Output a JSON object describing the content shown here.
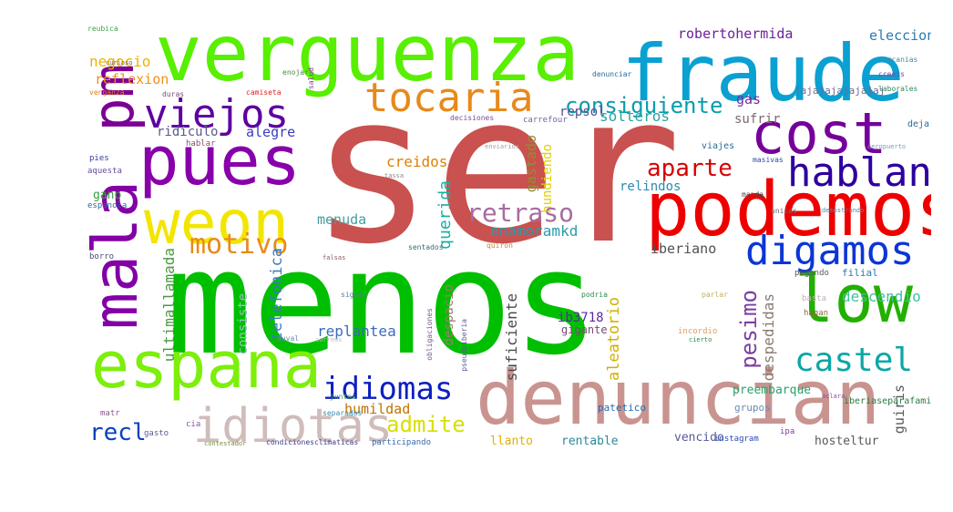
{
  "words": [
    {
      "text": "ser",
      "color": "#c9514f"
    },
    {
      "text": "menos",
      "color": "#00bf00"
    },
    {
      "text": "verguenza",
      "color": "#58ef00"
    },
    {
      "text": "fraude",
      "color": "#0aa0d2"
    },
    {
      "text": "podemos",
      "color": "#ee0000"
    },
    {
      "text": "denuncian",
      "color": "#c99490"
    },
    {
      "text": "pues",
      "color": "#8800aa"
    },
    {
      "text": "weon",
      "color": "#f2e500"
    },
    {
      "text": "pm",
      "color": "#7c0096"
    },
    {
      "text": "mala",
      "color": "#8300a6"
    },
    {
      "text": "espana",
      "color": "#7cef0a"
    },
    {
      "text": "cost",
      "color": "#76009a"
    },
    {
      "text": "low",
      "color": "#22b000"
    },
    {
      "text": "digamos",
      "color": "#0b36d6"
    },
    {
      "text": "hablan",
      "color": "#2d009e"
    },
    {
      "text": "tocaria",
      "color": "#e8891a"
    },
    {
      "text": "viejos",
      "color": "#5e00a0"
    },
    {
      "text": "idiotas",
      "color": "#cfbcbb"
    },
    {
      "text": "idiomas",
      "color": "#0c1fc0"
    },
    {
      "text": "castel",
      "color": "#0aa7a6"
    },
    {
      "text": "motivo",
      "color": "#e88a1a"
    },
    {
      "text": "retraso",
      "color": "#a86ca0"
    },
    {
      "text": "consiguiente",
      "color": "#0a9cac"
    },
    {
      "text": "aparte",
      "color": "#d80000"
    },
    {
      "text": "recl",
      "color": "#0a40c0"
    },
    {
      "text": "admite",
      "color": "#d8e000"
    },
    {
      "text": "robertohermida",
      "color": "#6c2196"
    },
    {
      "text": "eleccion",
      "color": "#2b7ab0"
    },
    {
      "text": "negocio",
      "color": "#f0b000"
    },
    {
      "text": "reflexion",
      "color": "#f0901a"
    },
    {
      "text": "repsol",
      "color": "#505090"
    },
    {
      "text": "solteros",
      "color": "#2aa3a0"
    },
    {
      "text": "creidos",
      "color": "#e08000"
    },
    {
      "text": "querida",
      "color": "#1ab0a0"
    },
    {
      "text": "enamoramkd",
      "color": "#2a9ab0"
    },
    {
      "text": "menuda",
      "color": "#40a0a0"
    },
    {
      "text": "alegre",
      "color": "#3a3ac0"
    },
    {
      "text": "ridiculo",
      "color": "#5a5a90"
    },
    {
      "text": "gastado",
      "color": "#909030"
    },
    {
      "text": "hundiendo",
      "color": "#e0d000"
    },
    {
      "text": "relindos",
      "color": "#2a8ab0"
    },
    {
      "text": "sufrir",
      "color": "#7a6a70"
    },
    {
      "text": "gas",
      "color": "#7a2aa0"
    },
    {
      "text": "jajajajajajajaj",
      "color": "#6a6a90"
    },
    {
      "text": "iberiano",
      "color": "#505050"
    },
    {
      "text": "pesimo",
      "color": "#7a40a0"
    },
    {
      "text": "despedidas",
      "color": "#8a7a70"
    },
    {
      "text": "descendio",
      "color": "#40c0a0"
    },
    {
      "text": "humildad",
      "color": "#c07000"
    },
    {
      "text": "ultimallamada",
      "color": "#4a9a40"
    },
    {
      "text": "telefonica",
      "color": "#3a7ac0"
    },
    {
      "text": "consiste",
      "color": "#90c0c0"
    },
    {
      "text": "replantea",
      "color": "#3a6ac0"
    },
    {
      "text": "despacio",
      "color": "#a07a70"
    },
    {
      "text": "aleatorio",
      "color": "#d0b000"
    },
    {
      "text": "suficiente",
      "color": "#4a4a4a"
    },
    {
      "text": "ib3718",
      "color": "#5a2aa0"
    },
    {
      "text": "gigante",
      "color": "#7a4a70"
    },
    {
      "text": "preembarque",
      "color": "#2aa06a"
    },
    {
      "text": "grupos",
      "color": "#6a8ab0"
    },
    {
      "text": "guiris",
      "color": "#5a5a5a"
    },
    {
      "text": "hosteltur",
      "color": "#5a5a5a"
    },
    {
      "text": "rentable",
      "color": "#2a8a9a"
    },
    {
      "text": "vencido",
      "color": "#5a5a9a"
    },
    {
      "text": "llanto",
      "color": "#e0b000"
    },
    {
      "text": "patetico",
      "color": "#2a6ab0"
    },
    {
      "text": "instagram",
      "color": "#2a4ab0"
    },
    {
      "text": "gano",
      "color": "#3aa040"
    },
    {
      "text": "participando",
      "color": "#3a6ab0"
    },
    {
      "text": "contestador",
      "color": "#7a8a3a"
    },
    {
      "text": "condicionesclimaticas",
      "color": "#3a3a8a"
    },
    {
      "text": "gasto",
      "color": "#5a5a9a"
    },
    {
      "text": "cia",
      "color": "#8a5aa0"
    },
    {
      "text": "separados",
      "color": "#3a8ab0"
    },
    {
      "text": "juntos",
      "color": "#4a9a5a"
    },
    {
      "text": "matr",
      "color": "#8a5a8a"
    },
    {
      "text": "iberiaseparafamilias",
      "color": "#2a7a40"
    },
    {
      "text": "ipa",
      "color": "#8a3aa0"
    },
    {
      "text": "hagan",
      "color": "#8a6a3a"
    },
    {
      "text": "basta",
      "color": "#c0b0b0"
    },
    {
      "text": "pegando",
      "color": "#5a5a5a"
    },
    {
      "text": "filial",
      "color": "#2a7ab0"
    },
    {
      "text": "deja",
      "color": "#2a6a9a"
    },
    {
      "text": "cercanias",
      "color": "#4a8aa0"
    },
    {
      "text": "creeis",
      "color": "#7a4a9a"
    },
    {
      "text": "laborales",
      "color": "#2a8a5a"
    },
    {
      "text": "aeropuerto",
      "color": "#7a9ac0"
    },
    {
      "text": "sentados",
      "color": "#3a6a6a"
    },
    {
      "text": "siguen",
      "color": "#5a7a9a"
    },
    {
      "text": "podria",
      "color": "#2a8a4a"
    },
    {
      "text": "viajes",
      "color": "#2a6a9a"
    },
    {
      "text": "unicas",
      "color": "#6a6a6a"
    },
    {
      "text": "demostrando",
      "color": "#4a8aa0"
    },
    {
      "text": "pies",
      "color": "#3a3aa0"
    },
    {
      "text": "aquesta",
      "color": "#6a4a9a"
    },
    {
      "text": "espanola",
      "color": "#2a6a9a"
    },
    {
      "text": "borro",
      "color": "#4a4a7a"
    },
    {
      "text": "venganza",
      "color": "#e08020"
    },
    {
      "text": "duras",
      "color": "#7a4a70"
    },
    {
      "text": "camiseta",
      "color": "#e02020"
    },
    {
      "text": "enojar",
      "color": "#4a8a4a"
    },
    {
      "text": "salud",
      "color": "#8a3aa0"
    },
    {
      "text": "curioso",
      "color": "#6a6a6a"
    },
    {
      "text": "reubica",
      "color": "#4aa04a"
    },
    {
      "text": "decisiones",
      "color": "#7a4a9a"
    },
    {
      "text": "denunciar",
      "color": "#2a6a9a"
    },
    {
      "text": "carrefour",
      "color": "#6a6a9a"
    },
    {
      "text": "masivas",
      "color": "#2a4a9a"
    },
    {
      "text": "manda",
      "color": "#4a4a4a"
    },
    {
      "text": "quiron",
      "color": "#c08a3a"
    },
    {
      "text": "hablar",
      "color": "#8a4a70"
    },
    {
      "text": "falsas",
      "color": "#8a5a5a"
    },
    {
      "text": "correos",
      "color": "#c0c0c0"
    },
    {
      "text": "duval",
      "color": "#6a8ab0"
    },
    {
      "text": "pseudoiberia",
      "color": "#5a5a9a"
    },
    {
      "text": "obligaciones",
      "color": "#7a5a8a"
    },
    {
      "text": "enviarios",
      "color": "#a0a0a0"
    },
    {
      "text": "tassa",
      "color": "#8a8a8a"
    },
    {
      "text": "incordio",
      "color": "#e0a060"
    },
    {
      "text": "parlar",
      "color": "#c0b060"
    },
    {
      "text": "cierto",
      "color": "#2a8a4a"
    },
    {
      "text": "aclara",
      "color": "#8a4a9a"
    }
  ]
}
